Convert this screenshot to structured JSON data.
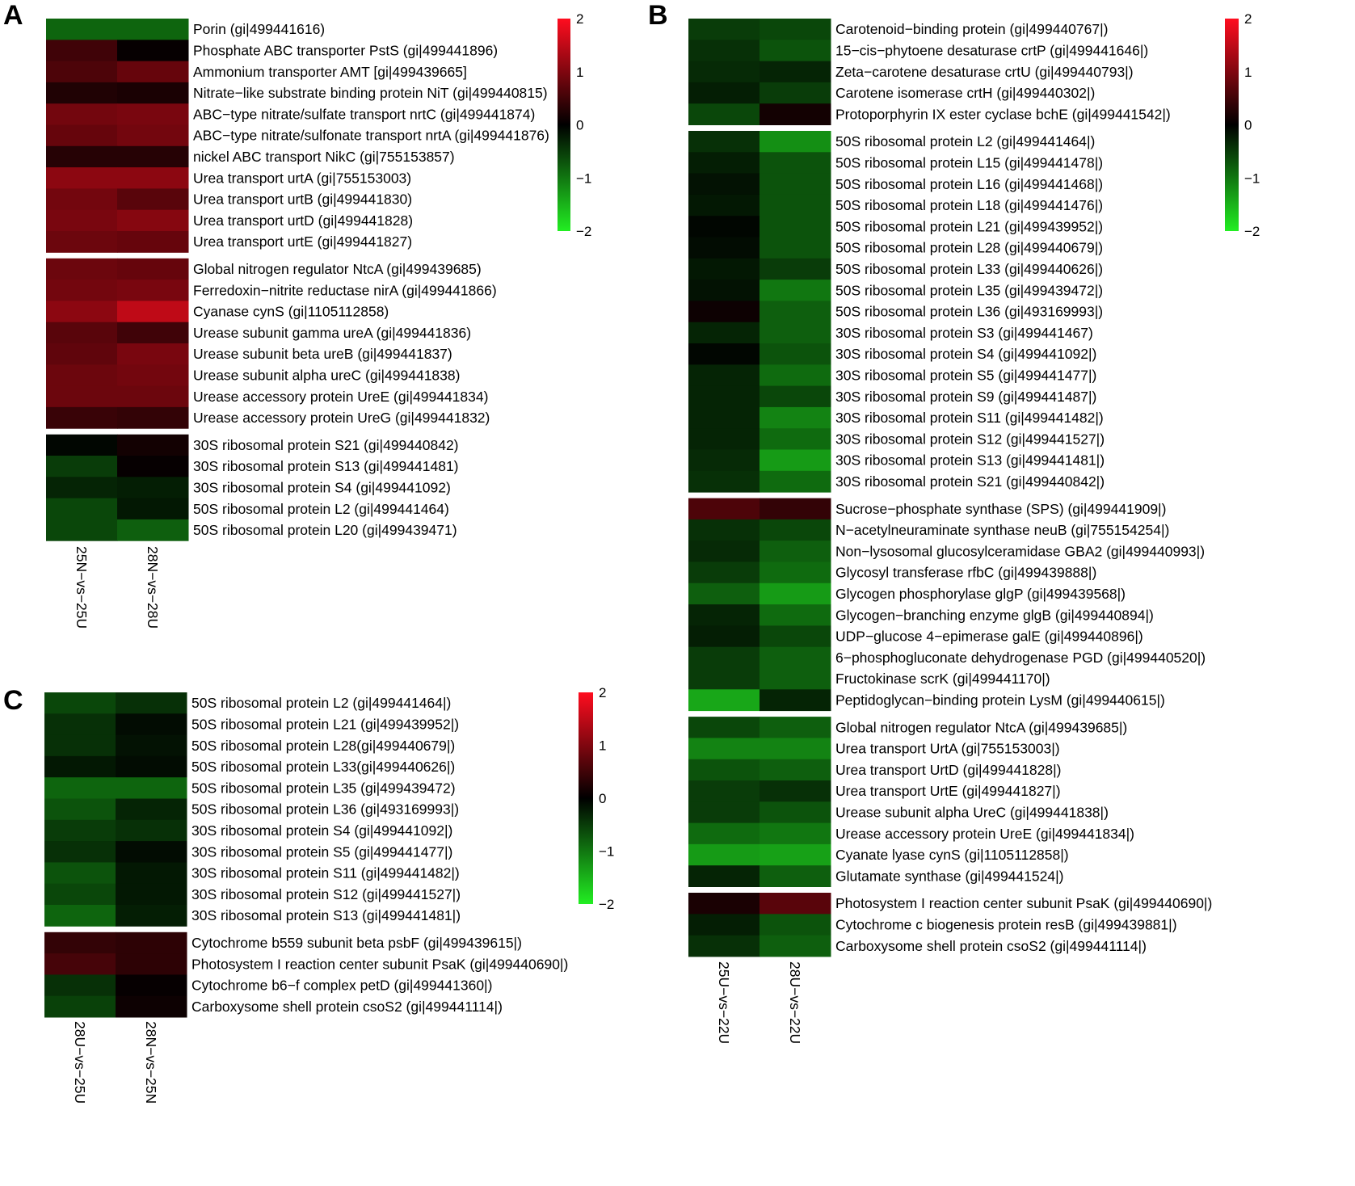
{
  "chart_data": [
    {
      "type": "heatmap",
      "panel": "A",
      "columns": [
        "25N−vs−25U",
        "28N−vs−28U"
      ],
      "colorbar": {
        "min": -2,
        "max": 2,
        "ticks": [
          "2",
          "1",
          "0",
          "−1",
          "−2"
        ],
        "low_color": "#22ee22",
        "mid_color": "#000000",
        "high_color": "#ff0d1f"
      },
      "groups": [
        {
          "rows": [
            {
              "label": "Porin (gi|499441616)",
              "values": [
                -0.85,
                -0.85
              ]
            },
            {
              "label": "Phosphate ABC transporter PstS (gi|499441896)",
              "values": [
                0.5,
                0.05
              ]
            },
            {
              "label": "Ammonium transporter AMT [gi|499439665]",
              "values": [
                0.6,
                0.8
              ]
            },
            {
              "label": "Nitrate−like substrate binding protein NiT (gi|499440815)",
              "values": [
                0.25,
                0.2
              ]
            },
            {
              "label": "ABC−type nitrate/sulfate transport nrtC (gi|499441874)",
              "values": [
                0.9,
                0.95
              ]
            },
            {
              "label": "ABC−type nitrate/sulfonate transport nrtA (gi|499441876)",
              "values": [
                0.8,
                0.9
              ]
            },
            {
              "label": "nickel ABC transport NikC (gi|755153857)",
              "values": [
                0.3,
                0.3
              ]
            },
            {
              "label": "Urea transport urtA (gi|755153003)",
              "values": [
                1.1,
                1.1
              ]
            },
            {
              "label": "Urea transport urtB (gi|499441830)",
              "values": [
                0.9,
                0.7
              ]
            },
            {
              "label": "Urea transport urtD (gi|499441828)",
              "values": [
                0.95,
                1.05
              ]
            },
            {
              "label": "Urea transport urtE (gi|499441827)",
              "values": [
                0.85,
                0.8
              ]
            }
          ]
        },
        {
          "rows": [
            {
              "label": "Global nitrogen regulator NtcA (gi|499439685)",
              "values": [
                0.85,
                0.8
              ]
            },
            {
              "label": "Ferredoxin−nitrite reductase nirA (gi|499441866)",
              "values": [
                0.9,
                0.95
              ]
            },
            {
              "label": "Cyanase cynS (gi|1105112858)",
              "values": [
                1.1,
                1.5
              ]
            },
            {
              "label": "Urease subunit gamma ureA (gi|499441836)",
              "values": [
                0.7,
                0.5
              ]
            },
            {
              "label": "Urease subunit beta ureB (gi|499441837)",
              "values": [
                0.75,
                0.95
              ]
            },
            {
              "label": "Urease subunit alpha ureC (gi|499441838)",
              "values": [
                0.85,
                0.9
              ]
            },
            {
              "label": "Urease accessory protein UreE (gi|499441834)",
              "values": [
                0.85,
                0.85
              ]
            },
            {
              "label": "Urease accessory protein UreG (gi|499441832)",
              "values": [
                0.45,
                0.4
              ]
            }
          ]
        },
        {
          "rows": [
            {
              "label": "30S ribosomal protein S21 (gi|499440842)",
              "values": [
                -0.05,
                0.15
              ]
            },
            {
              "label": "30S ribosomal protein S13 (gi|499441481)",
              "values": [
                -0.5,
                0.05
              ]
            },
            {
              "label": "30S ribosomal protein S4 (gi|499441092)",
              "values": [
                -0.3,
                -0.25
              ]
            },
            {
              "label": "50S ribosomal protein L2 (gi|499441464)",
              "values": [
                -0.6,
                -0.2
              ]
            },
            {
              "label": "50S ribosomal protein L20 (gi|499439471)",
              "values": [
                -0.6,
                -0.8
              ]
            }
          ]
        }
      ]
    },
    {
      "type": "heatmap",
      "panel": "B",
      "columns": [
        "25U−vs−22U",
        "28U−vs−22U"
      ],
      "colorbar": {
        "min": -2,
        "max": 2,
        "ticks": [
          "2",
          "1",
          "0",
          "−1",
          "−2"
        ],
        "low_color": "#22ee22",
        "mid_color": "#000000",
        "high_color": "#ff0d1f"
      },
      "groups": [
        {
          "rows": [
            {
              "label": "Carotenoid−binding protein (gi|499440767|)",
              "values": [
                -0.5,
                -0.6
              ]
            },
            {
              "label": "15−cis−phytoene desaturase crtP (gi|499441646|)",
              "values": [
                -0.4,
                -0.7
              ]
            },
            {
              "label": "Zeta−carotene desaturase crtU (gi|499440793|)",
              "values": [
                -0.35,
                -0.3
              ]
            },
            {
              "label": "Carotene isomerase crtH (gi|499440302|)",
              "values": [
                -0.25,
                -0.5
              ]
            },
            {
              "label": "Protoporphyrin IX ester cyclase bchE (gi|499441542|)",
              "values": [
                -0.6,
                0.15
              ]
            }
          ]
        },
        {
          "rows": [
            {
              "label": "50S ribosomal protein L2 (gi|499441464|)",
              "values": [
                -0.4,
                -1.2
              ]
            },
            {
              "label": "50S ribosomal protein L15 (gi|499441478|)",
              "values": [
                -0.25,
                -0.7
              ]
            },
            {
              "label": "50S ribosomal protein L16 (gi|499441468|)",
              "values": [
                -0.15,
                -0.7
              ]
            },
            {
              "label": "50S ribosomal protein L18 (gi|499441476|)",
              "values": [
                -0.2,
                -0.7
              ]
            },
            {
              "label": "50S ribosomal protein L21 (gi|499439952|)",
              "values": [
                -0.05,
                -0.7
              ]
            },
            {
              "label": "50S ribosomal protein L28 (gi|499440679|)",
              "values": [
                -0.1,
                -0.7
              ]
            },
            {
              "label": "50S ribosomal protein L33 (gi|499440626|)",
              "values": [
                -0.2,
                -0.5
              ]
            },
            {
              "label": "50S ribosomal protein L35 (gi|499439472|)",
              "values": [
                -0.15,
                -1.0
              ]
            },
            {
              "label": "50S ribosomal protein L36 (gi|493169993|)",
              "values": [
                0.1,
                -0.8
              ]
            },
            {
              "label": "30S ribosomal protein S3 (gi|499441467)",
              "values": [
                -0.3,
                -0.8
              ]
            },
            {
              "label": "30S ribosomal protein S4 (gi|499441092|)",
              "values": [
                -0.05,
                -0.7
              ]
            },
            {
              "label": "30S ribosomal protein S5 (gi|499441477|)",
              "values": [
                -0.3,
                -0.9
              ]
            },
            {
              "label": "30S ribosomal protein S9 (gi|499441487|)",
              "values": [
                -0.3,
                -0.6
              ]
            },
            {
              "label": "30S ribosomal protein S11 (gi|499441482|)",
              "values": [
                -0.3,
                -1.1
              ]
            },
            {
              "label": "30S ribosomal protein S12 (gi|499441527|)",
              "values": [
                -0.3,
                -0.9
              ]
            },
            {
              "label": "30S ribosomal protein S13 (gi|499441481|)",
              "values": [
                -0.35,
                -1.3
              ]
            },
            {
              "label": "30S ribosomal protein S21 (gi|499440842|)",
              "values": [
                -0.4,
                -0.9
              ]
            }
          ]
        },
        {
          "rows": [
            {
              "label": "Sucrose−phosphate synthase (SPS) (gi|499441909|)",
              "values": [
                0.6,
                0.4
              ]
            },
            {
              "label": "N−acetylneuraminate synthase neuB (gi|755154254|)",
              "values": [
                -0.4,
                -0.6
              ]
            },
            {
              "label": "Non−lysosomal glucosylceramidase GBA2 (gi|499440993|)",
              "values": [
                -0.35,
                -0.8
              ]
            },
            {
              "label": "Glycosyl transferase rfbC (gi|499439888|)",
              "values": [
                -0.5,
                -0.9
              ]
            },
            {
              "label": "Glycogen phosphorylase glgP (gi|499439568|)",
              "values": [
                -0.8,
                -1.3
              ]
            },
            {
              "label": "Glycogen−branching enzyme glgB (gi|499440894|)",
              "values": [
                -0.3,
                -0.9
              ]
            },
            {
              "label": "UDP−glucose 4−epimerase galE (gi|499440896|)",
              "values": [
                -0.25,
                -0.6
              ]
            },
            {
              "label": "6−phosphogluconate dehydrogenase PGD (gi|499440520|)",
              "values": [
                -0.5,
                -0.8
              ]
            },
            {
              "label": "Fructokinase scrK (gi|499441170|)",
              "values": [
                -0.5,
                -0.8
              ]
            },
            {
              "label": "Peptidoglycan−binding protein LysM (gi|499440615|)",
              "values": [
                -1.4,
                -0.3
              ]
            }
          ]
        },
        {
          "rows": [
            {
              "label": "Global nitrogen regulator NtcA (gi|499439685|)",
              "values": [
                -0.6,
                -0.8
              ]
            },
            {
              "label": "Urea transport UrtA (gi|755153003|)",
              "values": [
                -1.1,
                -1.1
              ]
            },
            {
              "label": "Urea transport UrtD (gi|499441828|)",
              "values": [
                -0.7,
                -0.8
              ]
            },
            {
              "label": "Urea transport UrtE (gi|499441827|)",
              "values": [
                -0.5,
                -0.4
              ]
            },
            {
              "label": "Urease subunit alpha UreC (gi|499441838|)",
              "values": [
                -0.5,
                -0.7
              ]
            },
            {
              "label": "Urease accessory protein UreE (gi|499441834|)",
              "values": [
                -0.9,
                -1.0
              ]
            },
            {
              "label": "Cyanate lyase cynS (gi|1105112858|)",
              "values": [
                -1.3,
                -1.35
              ]
            },
            {
              "label": "Glutamate synthase (gi|499441524|)",
              "values": [
                -0.3,
                -0.8
              ]
            }
          ]
        },
        {
          "rows": [
            {
              "label": "Photosystem I reaction center subunit PsaK (gi|499440690|)",
              "values": [
                0.2,
                0.7
              ]
            },
            {
              "label": "Cytochrome c biogenesis protein resB (gi|499439881|)",
              "values": [
                -0.25,
                -0.7
              ]
            },
            {
              "label": "Carboxysome shell protein csoS2 (gi|499441114|)",
              "values": [
                -0.4,
                -0.8
              ]
            }
          ]
        }
      ]
    },
    {
      "type": "heatmap",
      "panel": "C",
      "columns": [
        "28U−vs−25U",
        "28N−vs−25N"
      ],
      "colorbar": {
        "min": -2,
        "max": 2,
        "ticks": [
          "2",
          "1",
          "0",
          "−1",
          "−2"
        ],
        "low_color": "#22ee22",
        "mid_color": "#000000",
        "high_color": "#ff0d1f"
      },
      "groups": [
        {
          "rows": [
            {
              "label": "50S ribosomal protein L2 (gi|499441464|)",
              "values": [
                -0.6,
                -0.4
              ]
            },
            {
              "label": "50S ribosomal protein L21 (gi|499439952|)",
              "values": [
                -0.4,
                -0.1
              ]
            },
            {
              "label": "50S ribosomal protein L28(gi|499440679|)",
              "values": [
                -0.4,
                -0.15
              ]
            },
            {
              "label": "50S ribosomal protein L33(gi|499440626|)",
              "values": [
                -0.2,
                -0.1
              ]
            },
            {
              "label": "50S ribosomal protein L35 (gi|499439472)",
              "values": [
                -0.85,
                -0.85
              ]
            },
            {
              "label": "50S ribosomal protein L36 (gi|493169993|)",
              "values": [
                -0.7,
                -0.3
              ]
            },
            {
              "label": "30S ribosomal protein S4 (gi|499441092|)",
              "values": [
                -0.5,
                -0.4
              ]
            },
            {
              "label": "30S ribosomal protein S5 (gi|499441477|)",
              "values": [
                -0.4,
                -0.1
              ]
            },
            {
              "label": "30S ribosomal protein S11 (gi|499441482|)",
              "values": [
                -0.7,
                -0.2
              ]
            },
            {
              "label": "30S ribosomal protein S12 (gi|499441527|)",
              "values": [
                -0.6,
                -0.2
              ]
            },
            {
              "label": "30S ribosomal protein S13 (gi|499441481|)",
              "values": [
                -0.85,
                -0.25
              ]
            }
          ]
        },
        {
          "rows": [
            {
              "label": "Cytochrome b559 subunit beta psbF (gi|499439615|)",
              "values": [
                0.4,
                0.35
              ]
            },
            {
              "label": "Photosystem I reaction center subunit PsaK (gi|499440690|)",
              "values": [
                0.55,
                0.35
              ]
            },
            {
              "label": "Cytochrome b6−f complex petD (gi|499441360|)",
              "values": [
                -0.4,
                0.05
              ]
            },
            {
              "label": "Carboxysome shell protein csoS2 (gi|499441114|)",
              "values": [
                -0.55,
                0.1
              ]
            }
          ]
        }
      ]
    }
  ]
}
